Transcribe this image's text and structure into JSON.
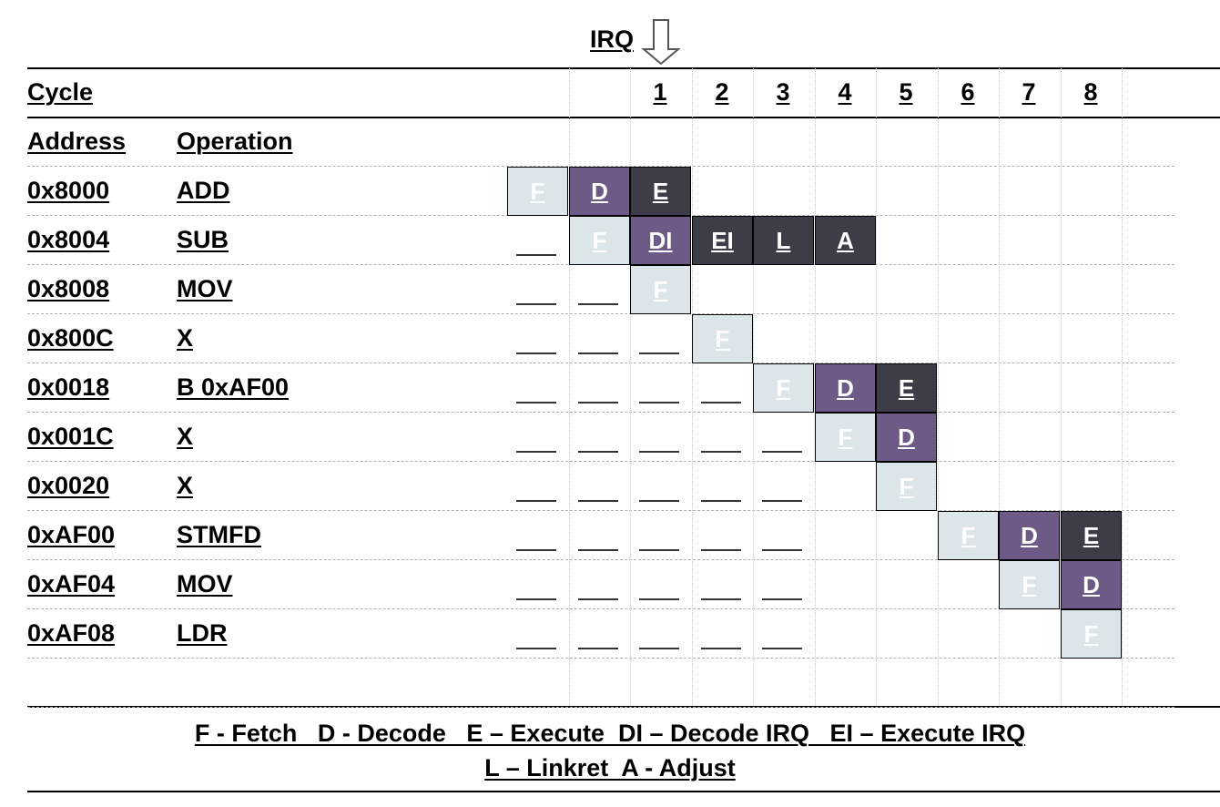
{
  "irq_label": "IRQ",
  "header": {
    "cycle_label": "Cycle",
    "address_label": "Address",
    "operation_label": "Operation"
  },
  "cycles": [
    "1",
    "2",
    "3",
    "4",
    "5",
    "6",
    "7",
    "8"
  ],
  "colors": {
    "fetch": "#dbe5ea",
    "decode": "#6e5a86",
    "execute": "#3d3d47",
    "fetch_text": "#ffffff",
    "dark_text": "#ffffff"
  },
  "instructions": [
    {
      "address": "0x8000",
      "operation": "ADD",
      "stages": [
        {
          "col": 0,
          "label": "F",
          "kind": "fetch"
        },
        {
          "col": 1,
          "label": "D",
          "kind": "decode"
        },
        {
          "col": 2,
          "label": "E",
          "kind": "execute"
        }
      ],
      "waits": []
    },
    {
      "address": "0x8004",
      "operation": "SUB",
      "stages": [
        {
          "col": 1,
          "label": "F",
          "kind": "fetch"
        },
        {
          "col": 2,
          "label": "DI",
          "kind": "decode"
        },
        {
          "col": 3,
          "label": "EI",
          "kind": "execute"
        },
        {
          "col": 4,
          "label": "L",
          "kind": "execute"
        },
        {
          "col": 5,
          "label": "A",
          "kind": "execute"
        }
      ],
      "waits": [
        0
      ]
    },
    {
      "address": "0x8008",
      "operation": "MOV",
      "stages": [
        {
          "col": 2,
          "label": "F",
          "kind": "fetch"
        }
      ],
      "waits": [
        0,
        1
      ]
    },
    {
      "address": "0x800C",
      "operation": "X",
      "stages": [
        {
          "col": 3,
          "label": "F",
          "kind": "fetch"
        }
      ],
      "waits": [
        0,
        1,
        2
      ]
    },
    {
      "address": "0x0018",
      "operation": "B 0xAF00",
      "stages": [
        {
          "col": 4,
          "label": "F",
          "kind": "fetch"
        },
        {
          "col": 5,
          "label": "D",
          "kind": "decode"
        },
        {
          "col": 6,
          "label": "E",
          "kind": "execute"
        }
      ],
      "waits": [
        0,
        1,
        2,
        3
      ]
    },
    {
      "address": "0x001C",
      "operation": "X",
      "stages": [
        {
          "col": 5,
          "label": "F",
          "kind": "fetch"
        },
        {
          "col": 6,
          "label": "D",
          "kind": "decode"
        }
      ],
      "waits": [
        0,
        1,
        2,
        3,
        4
      ]
    },
    {
      "address": "0x0020",
      "operation": "X",
      "stages": [
        {
          "col": 6,
          "label": "F",
          "kind": "fetch"
        }
      ],
      "waits": [
        0,
        1,
        2,
        3,
        4
      ]
    },
    {
      "address": "0xAF00",
      "operation": "STMFD",
      "stages": [
        {
          "col": 7,
          "label": "F",
          "kind": "fetch"
        },
        {
          "col": 8,
          "label": "D",
          "kind": "decode"
        },
        {
          "col": 9,
          "label": "E",
          "kind": "execute"
        }
      ],
      "waits": [
        0,
        1,
        2,
        3,
        4
      ]
    },
    {
      "address": "0xAF04",
      "operation": "MOV",
      "stages": [
        {
          "col": 8,
          "label": "F",
          "kind": "fetch"
        },
        {
          "col": 9,
          "label": "D",
          "kind": "decode"
        }
      ],
      "waits": [
        0,
        1,
        2,
        3,
        4
      ]
    },
    {
      "address": "0xAF08",
      "operation": "LDR",
      "stages": [
        {
          "col": 9,
          "label": "F",
          "kind": "fetch"
        }
      ],
      "waits": [
        0,
        1,
        2,
        3,
        4
      ]
    }
  ],
  "legend": {
    "line1": "F - Fetch   D - Decode   E – Execute  DI – Decode IRQ   EI – Execute IRQ",
    "line2": "L – Linkret  A - Adjust"
  }
}
